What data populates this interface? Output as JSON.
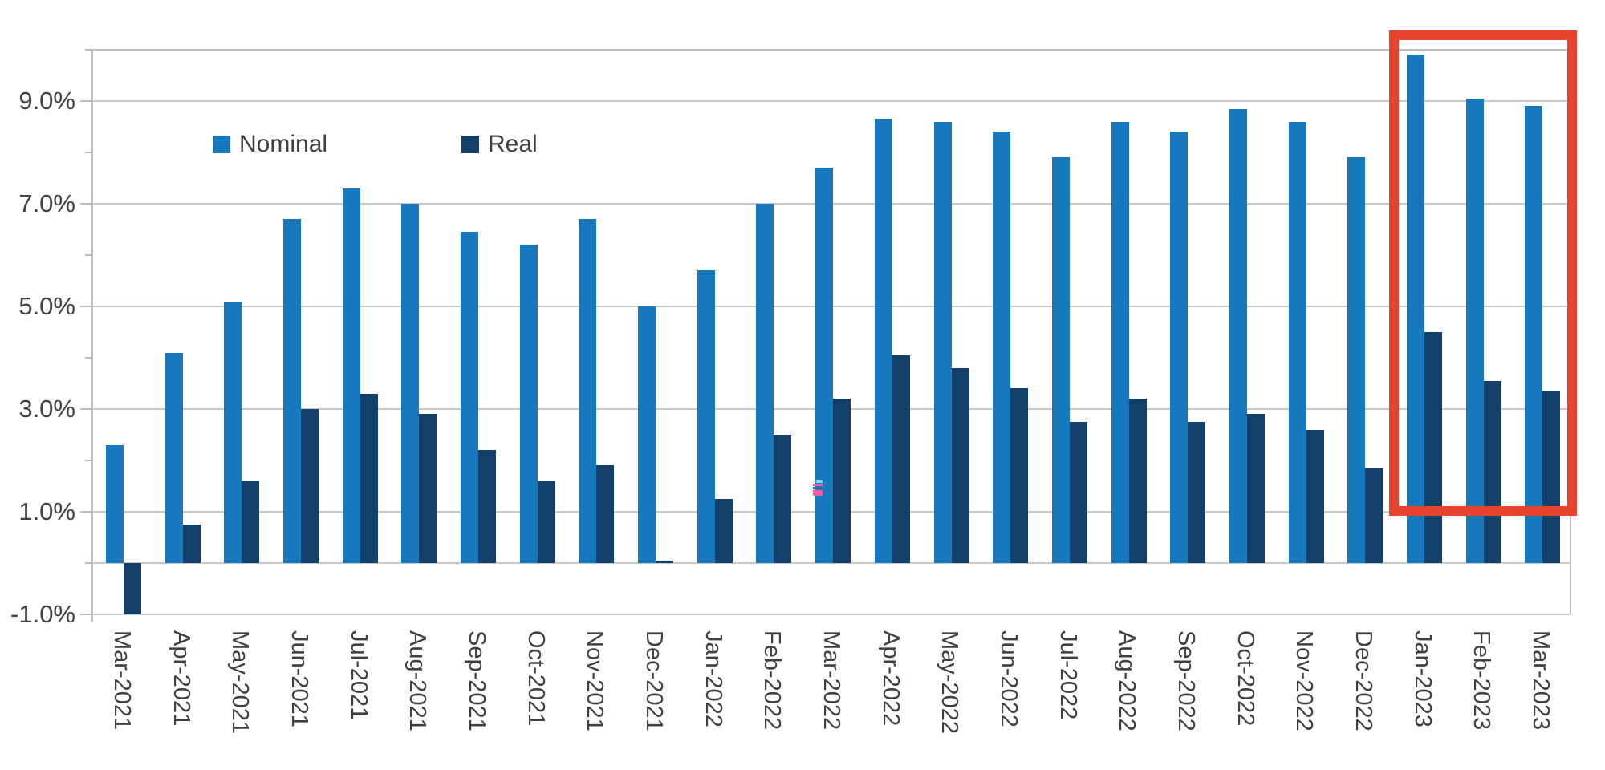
{
  "chart_data": {
    "type": "bar",
    "title": "",
    "xlabel": "",
    "ylabel": "",
    "categories": [
      "Mar-2021",
      "Apr-2021",
      "May-2021",
      "Jun-2021",
      "Jul-2021",
      "Aug-2021",
      "Sep-2021",
      "Oct-2021",
      "Nov-2021",
      "Dec-2021",
      "Jan-2022",
      "Feb-2022",
      "Mar-2022",
      "Apr-2022",
      "May-2022",
      "Jun-2022",
      "Jul-2022",
      "Aug-2022",
      "Sep-2022",
      "Oct-2022",
      "Nov-2022",
      "Dec-2022",
      "Jan-2023",
      "Feb-2023",
      "Mar-2023"
    ],
    "series": [
      {
        "name": "Nominal",
        "color": "#1878BE",
        "values": [
          2.3,
          4.1,
          5.1,
          6.7,
          7.3,
          7.0,
          6.45,
          6.2,
          6.7,
          5.0,
          5.7,
          7.0,
          7.7,
          8.65,
          8.6,
          8.4,
          7.9,
          8.6,
          8.4,
          8.85,
          8.6,
          7.9,
          9.9,
          9.05,
          8.9
        ]
      },
      {
        "name": "Real",
        "color": "#12406B",
        "values": [
          -1.0,
          0.75,
          1.6,
          3.0,
          3.3,
          2.9,
          2.2,
          1.6,
          1.9,
          0.05,
          1.25,
          2.5,
          3.2,
          4.05,
          3.8,
          3.4,
          2.75,
          3.2,
          2.75,
          2.9,
          2.6,
          1.85,
          4.5,
          3.55,
          3.35
        ]
      }
    ],
    "ylim": [
      -1,
      10
    ],
    "y_axis": {
      "tick_labels": [
        "9.0%",
        "7.0%",
        "5.0%",
        "3.0%",
        "1.0%",
        "-1.0%"
      ],
      "tick_values": [
        9,
        7,
        5,
        3,
        1,
        -1
      ],
      "minor_tick_values": [
        10,
        8,
        6,
        4,
        2,
        0
      ]
    },
    "grid": true,
    "legend_position": "top-left-inside",
    "annotation": {
      "type": "highlight-box",
      "categories": [
        "Jan-2023",
        "Feb-2023",
        "Mar-2023"
      ],
      "color": "#E8432C"
    }
  },
  "legend": {
    "items": [
      {
        "label": "Nominal",
        "color": "#1878BE"
      },
      {
        "label": "Real",
        "color": "#12406B"
      }
    ]
  },
  "colors": {
    "nominal": "#1878BE",
    "real": "#12406B",
    "highlight": "#E8432C",
    "gridline": "#C9C9C9",
    "axis": "#BFBFBF",
    "text": "#404040",
    "background": "#FFFFFF",
    "artifact_pink": "#FA5AA2",
    "artifact_cyan": "#86D7F0",
    "artifact_blue": "#2E6DB4"
  }
}
